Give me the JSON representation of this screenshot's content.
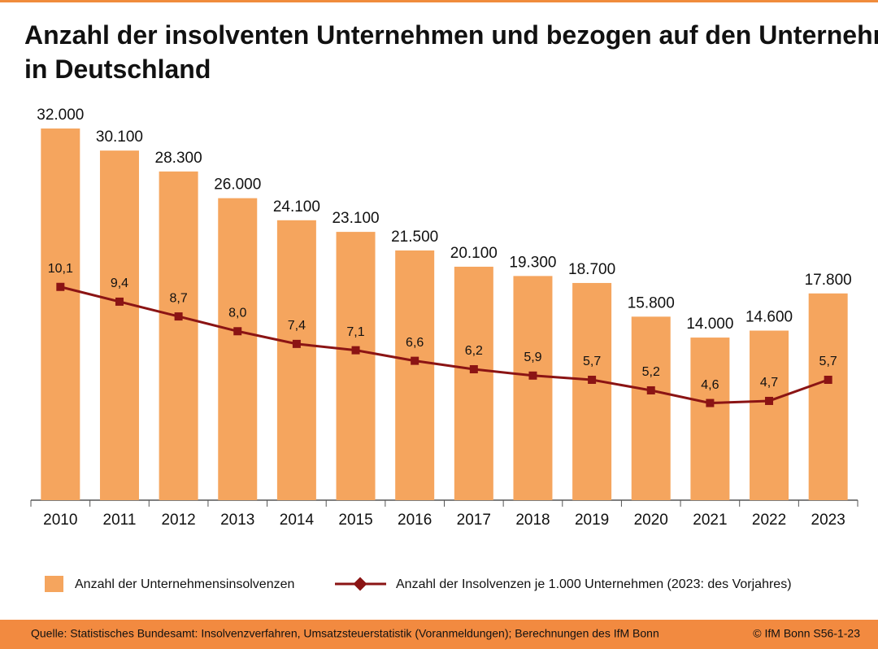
{
  "chart_data": {
    "type": "bar",
    "title": "Anzahl der insolventen Unternehmen und bezogen auf den Unternehmensbestand in Deutschland",
    "categories": [
      "2010",
      "2011",
      "2012",
      "2013",
      "2014",
      "2015",
      "2016",
      "2017",
      "2018",
      "2019",
      "2020",
      "2021",
      "2022",
      "2023"
    ],
    "series": [
      {
        "name": "Anzahl der Unternehmensinsolvenzen",
        "type": "bar",
        "color": "#f5a55e",
        "axis": "y",
        "values": [
          32000,
          30100,
          28300,
          26000,
          24100,
          23100,
          21500,
          20100,
          19300,
          18700,
          15800,
          14000,
          14600,
          17800
        ],
        "value_labels": [
          "32.000",
          "30.100",
          "28.300",
          "26.000",
          "24.100",
          "23.100",
          "21.500",
          "20.100",
          "19.300",
          "18.700",
          "15.800",
          "14.000",
          "14.600",
          "17.800"
        ]
      },
      {
        "name": "Anzahl der Insolvenzen  je 1.000 Unternehmen  (2023: des Vorjahres)",
        "type": "line",
        "color": "#8b1414",
        "axis": "y2",
        "values": [
          10.1,
          9.4,
          8.7,
          8.0,
          7.4,
          7.1,
          6.6,
          6.2,
          5.9,
          5.7,
          5.2,
          4.6,
          4.7,
          5.7
        ],
        "value_labels": [
          "10,1",
          "9,4",
          "8,7",
          "8,0",
          "7,4",
          "7,1",
          "6,6",
          "6,2",
          "5,9",
          "5,7",
          "5,2",
          "4,6",
          "4,7",
          "5,7"
        ]
      }
    ],
    "ylim": [
      0,
      32000
    ],
    "y2lim": [
      0,
      17.6
    ],
    "source": "Quelle:  Statistisches Bundesamt: Insolvenzverfahren,  Umsatzsteuerstatistik (Voranmeldungen);  Berechnungen  des  IfM Bonn",
    "credit": "© IfM  Bonn   S56-1-23"
  }
}
